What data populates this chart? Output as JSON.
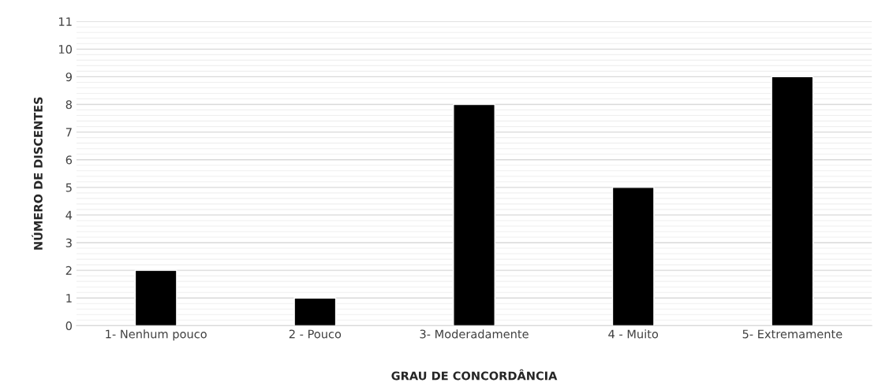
{
  "chart_data": {
    "type": "bar",
    "xlabel": "GRAU DE CONCORDÂNCIA",
    "ylabel": "NÚMERO DE DISCENTES",
    "categories": [
      "1- Nenhum pouco",
      "2 - Pouco",
      "3- Moderadamente",
      "4 - Muito",
      "5- Extremamente"
    ],
    "values": [
      2,
      1,
      8,
      5,
      9
    ],
    "color": "#000000",
    "ylim": [
      0,
      11
    ],
    "yticks": [
      0,
      1,
      2,
      3,
      4,
      5,
      6,
      7,
      8,
      9,
      10,
      11
    ],
    "grid": "y"
  }
}
